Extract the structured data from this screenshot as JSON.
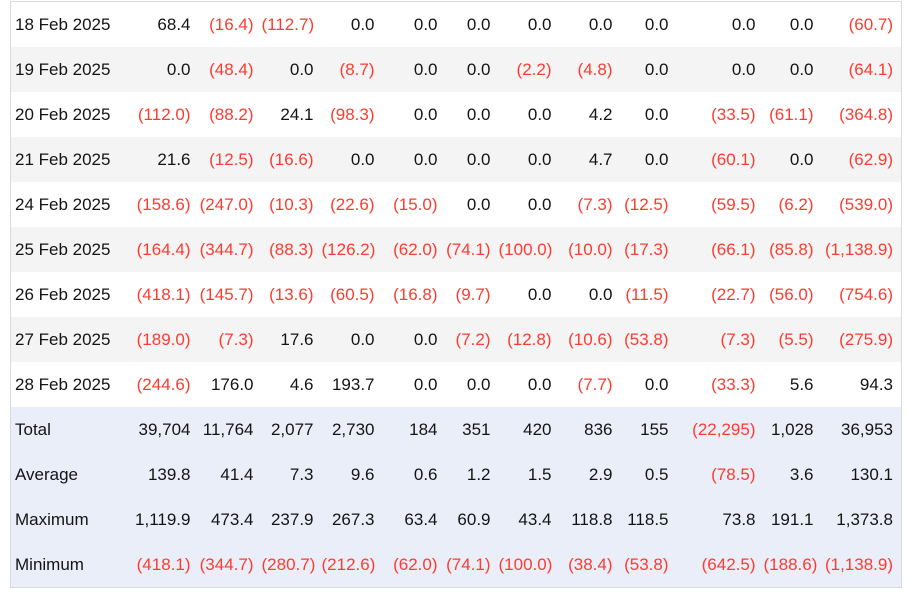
{
  "table": {
    "description": "daily-values-table",
    "negative_format": "parentheses",
    "columns_count": 12,
    "colors": {
      "negative": "#fe3b30",
      "text": "#141414",
      "alt_row": "#f4f4f5",
      "summary_row": "#e9eef9",
      "border": "#d9d9de",
      "background": "#ffffff"
    },
    "rows": [
      {
        "label": "18 Feb 2025",
        "values": [
          "68.4",
          "(16.4)",
          "(112.7)",
          "0.0",
          "0.0",
          "0.0",
          "0.0",
          "0.0",
          "0.0",
          "0.0",
          "0.0",
          "(60.7)"
        ]
      },
      {
        "label": "19 Feb 2025",
        "values": [
          "0.0",
          "(48.4)",
          "0.0",
          "(8.7)",
          "0.0",
          "0.0",
          "(2.2)",
          "(4.8)",
          "0.0",
          "0.0",
          "0.0",
          "(64.1)"
        ]
      },
      {
        "label": "20 Feb 2025",
        "values": [
          "(112.0)",
          "(88.2)",
          "24.1",
          "(98.3)",
          "0.0",
          "0.0",
          "0.0",
          "4.2",
          "0.0",
          "(33.5)",
          "(61.1)",
          "(364.8)"
        ]
      },
      {
        "label": "21 Feb 2025",
        "values": [
          "21.6",
          "(12.5)",
          "(16.6)",
          "0.0",
          "0.0",
          "0.0",
          "0.0",
          "4.7",
          "0.0",
          "(60.1)",
          "0.0",
          "(62.9)"
        ]
      },
      {
        "label": "24 Feb 2025",
        "values": [
          "(158.6)",
          "(247.0)",
          "(10.3)",
          "(22.6)",
          "(15.0)",
          "0.0",
          "0.0",
          "(7.3)",
          "(12.5)",
          "(59.5)",
          "(6.2)",
          "(539.0)"
        ]
      },
      {
        "label": "25 Feb 2025",
        "values": [
          "(164.4)",
          "(344.7)",
          "(88.3)",
          "(126.2)",
          "(62.0)",
          "(74.1)",
          "(100.0)",
          "(10.0)",
          "(17.3)",
          "(66.1)",
          "(85.8)",
          "(1,138.9)"
        ]
      },
      {
        "label": "26 Feb 2025",
        "values": [
          "(418.1)",
          "(145.7)",
          "(13.6)",
          "(60.5)",
          "(16.8)",
          "(9.7)",
          "0.0",
          "0.0",
          "(11.5)",
          "(22.7)",
          "(56.0)",
          "(754.6)"
        ]
      },
      {
        "label": "27 Feb 2025",
        "values": [
          "(189.0)",
          "(7.3)",
          "17.6",
          "0.0",
          "0.0",
          "(7.2)",
          "(12.8)",
          "(10.6)",
          "(53.8)",
          "(7.3)",
          "(5.5)",
          "(275.9)"
        ]
      },
      {
        "label": "28 Feb 2025",
        "values": [
          "(244.6)",
          "176.0",
          "4.6",
          "193.7",
          "0.0",
          "0.0",
          "0.0",
          "(7.7)",
          "0.0",
          "(33.3)",
          "5.6",
          "94.3"
        ]
      }
    ],
    "summary_rows": [
      {
        "label": "Total",
        "values": [
          "39,704",
          "11,764",
          "2,077",
          "2,730",
          "184",
          "351",
          "420",
          "836",
          "155",
          "(22,295)",
          "1,028",
          "36,953"
        ]
      },
      {
        "label": "Average",
        "values": [
          "139.8",
          "41.4",
          "7.3",
          "9.6",
          "0.6",
          "1.2",
          "1.5",
          "2.9",
          "0.5",
          "(78.5)",
          "3.6",
          "130.1"
        ]
      },
      {
        "label": "Maximum",
        "values": [
          "1,119.9",
          "473.4",
          "237.9",
          "267.3",
          "63.4",
          "60.9",
          "43.4",
          "118.8",
          "118.5",
          "73.8",
          "191.1",
          "1,373.8"
        ]
      },
      {
        "label": "Minimum",
        "values": [
          "(418.1)",
          "(344.7)",
          "(280.7)",
          "(212.6)",
          "(62.0)",
          "(74.1)",
          "(100.0)",
          "(38.4)",
          "(53.8)",
          "(642.5)",
          "(188.6)",
          "(1,138.9)"
        ]
      }
    ]
  }
}
